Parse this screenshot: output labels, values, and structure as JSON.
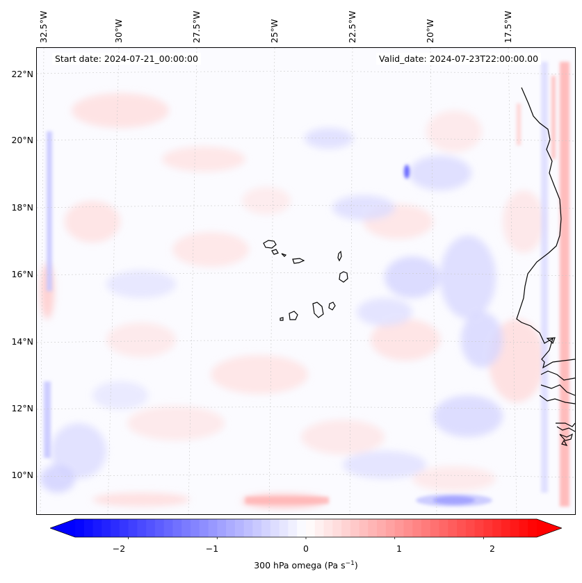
{
  "header": {
    "start_date": "Start date: 2024-07-21_00:00:00",
    "valid_date": "Valid_date: 2024-07-23T22:00:00.00"
  },
  "map": {
    "longitude_labels": [
      "32.5°W",
      "30°W",
      "27.5°W",
      "25°W",
      "22.5°W",
      "20°W",
      "17.5°W"
    ],
    "latitude_labels": [
      "22°N",
      "20°N",
      "18°N",
      "16°N",
      "14°N",
      "12°N",
      "10°N"
    ],
    "gridlines": true,
    "colors": {
      "land_outline": "#000000",
      "negative": "#0000ff",
      "positive": "#ff0000",
      "zero": "#ffffff"
    }
  },
  "colorbar": {
    "ticks": [
      "−2",
      "−1",
      "0",
      "1",
      "2"
    ],
    "label": "300 hPa omega (Pa s",
    "label_sup": "−1",
    "label_end": ")",
    "range": [
      -2.6,
      2.6
    ],
    "extend": "both"
  }
}
